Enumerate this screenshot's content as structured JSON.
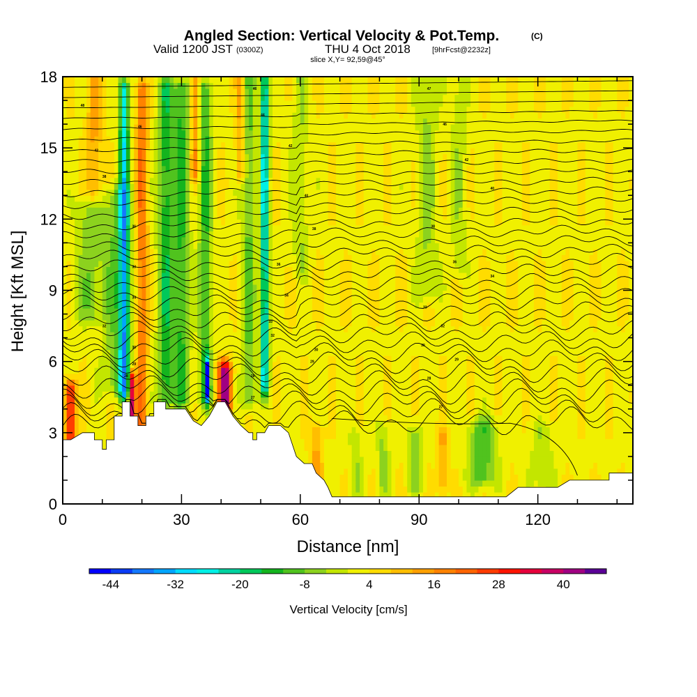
{
  "chart_data": {
    "type": "heatmap",
    "title": "Angled Section: Vertical Velocity & Pot.Temp.",
    "title_mark": "(C)",
    "subtitle_main": "Valid 1200 JST",
    "subtitle_utc": "(0300Z)",
    "subtitle_date": "THU 4 Oct 2018",
    "subtitle_fcst": "[9hrFcst@2232z]",
    "slice_label": "slice X,Y= 92,59@45°",
    "xlabel": "Distance [nm]",
    "ylabel": "Height [Kft MSL]",
    "xlim": [
      0,
      144
    ],
    "ylim": [
      0,
      18
    ],
    "x_ticks": [
      0,
      30,
      60,
      90,
      120
    ],
    "y_ticks": [
      0,
      3,
      6,
      9,
      12,
      15,
      18
    ],
    "colorbar": {
      "title": "Vertical Velocity [cm/s]",
      "min": -48,
      "max": 48,
      "tick_values": [
        -44,
        -32,
        -20,
        -8,
        4,
        16,
        28,
        40
      ],
      "tick_labels": [
        "-44",
        "-32",
        "-20",
        "-8",
        "4",
        "16",
        "28",
        "40"
      ],
      "colors": [
        "#0000ff",
        "#0a3cf5",
        "#1478ff",
        "#00a5ff",
        "#00dcff",
        "#00f0e6",
        "#00d2a0",
        "#00c85a",
        "#14b41e",
        "#50c31e",
        "#8cd21e",
        "#c3e600",
        "#f0f000",
        "#ffdc00",
        "#ffbe00",
        "#ffa000",
        "#ff8200",
        "#ff6400",
        "#ff3c00",
        "#ff1400",
        "#e6003c",
        "#c80064",
        "#a00082",
        "#5a0096"
      ]
    },
    "terrain_kft": [
      [
        0,
        2.7
      ],
      [
        2,
        2.7
      ],
      [
        5,
        3.0
      ],
      [
        8,
        3.0
      ],
      [
        8,
        2.7
      ],
      [
        10,
        2.7
      ],
      [
        10,
        2.3
      ],
      [
        11,
        2.3
      ],
      [
        11,
        2.7
      ],
      [
        13,
        2.7
      ],
      [
        13,
        3.7
      ],
      [
        15,
        3.7
      ],
      [
        15,
        4.3
      ],
      [
        17,
        4.3
      ],
      [
        17,
        3.7
      ],
      [
        19,
        3.7
      ],
      [
        19,
        3.3
      ],
      [
        21,
        3.3
      ],
      [
        21,
        3.7
      ],
      [
        23,
        3.7
      ],
      [
        23,
        4.3
      ],
      [
        26,
        4.3
      ],
      [
        26,
        4.0
      ],
      [
        31,
        4.0
      ],
      [
        33,
        3.5
      ],
      [
        35,
        3.3
      ],
      [
        37,
        3.7
      ],
      [
        39,
        4.3
      ],
      [
        41,
        4.3
      ],
      [
        43,
        3.7
      ],
      [
        45,
        3.3
      ],
      [
        47,
        3.0
      ],
      [
        48,
        3.0
      ],
      [
        48,
        2.7
      ],
      [
        49,
        2.7
      ],
      [
        49,
        3.0
      ],
      [
        51,
        3.0
      ],
      [
        52,
        3.3
      ],
      [
        55,
        3.3
      ],
      [
        57,
        3.0
      ],
      [
        59,
        2.0
      ],
      [
        61,
        1.7
      ],
      [
        63,
        1.7
      ],
      [
        64,
        1.3
      ],
      [
        66,
        1.0
      ],
      [
        67,
        0.7
      ],
      [
        68,
        0.3
      ],
      [
        90,
        0.3
      ],
      [
        112,
        0.3
      ],
      [
        115,
        0.7
      ],
      [
        119,
        0.7
      ],
      [
        125,
        0.7
      ],
      [
        128,
        1.0
      ],
      [
        132,
        1.0
      ],
      [
        138,
        1.0
      ],
      [
        138,
        1.3
      ],
      [
        144,
        1.3
      ]
    ],
    "vv_features": [
      {
        "x": 15.5,
        "z0": 4.8,
        "z1": 17.5,
        "w": 1.2,
        "v": -30
      },
      {
        "x": 14.0,
        "z0": 5.0,
        "z1": 13.0,
        "w": 3.5,
        "v": -12
      },
      {
        "x": 26.0,
        "z0": 4.5,
        "z1": 17.5,
        "w": 2.0,
        "v": -18
      },
      {
        "x": 30.0,
        "z0": 4.5,
        "z1": 17.5,
        "w": 2.0,
        "v": -16
      },
      {
        "x": 36.0,
        "z0": 4.5,
        "z1": 17.5,
        "w": 1.6,
        "v": -16
      },
      {
        "x": 51.0,
        "z0": 5.0,
        "z1": 18.0,
        "w": 1.0,
        "v": -32
      },
      {
        "x": 47.0,
        "z0": 4.5,
        "z1": 18.0,
        "w": 1.8,
        "v": -12
      },
      {
        "x": 20.0,
        "z0": 3.5,
        "z1": 17.5,
        "w": 1.4,
        "v": 18
      },
      {
        "x": 17.5,
        "z0": 3.5,
        "z1": 5.2,
        "w": 0.8,
        "v": 36
      },
      {
        "x": 41.0,
        "z0": 4.3,
        "z1": 5.6,
        "w": 1.6,
        "v": 40
      },
      {
        "x": 2.0,
        "z0": 2.7,
        "z1": 4.8,
        "w": 1.4,
        "v": 28
      },
      {
        "x": 36.5,
        "z0": 4.8,
        "z1": 5.6,
        "w": 0.6,
        "v": -42
      },
      {
        "x": 7.0,
        "z0": 8.0,
        "z1": 12.5,
        "w": 3.5,
        "v": -10
      },
      {
        "x": 92.0,
        "z0": 9.0,
        "z1": 18.0,
        "w": 2.5,
        "v": -8
      },
      {
        "x": 100.0,
        "z0": 10.0,
        "z1": 18.0,
        "w": 2.0,
        "v": -6
      },
      {
        "x": 60.0,
        "z0": 10.0,
        "z1": 18.0,
        "w": 2.0,
        "v": -7
      },
      {
        "x": 106.0,
        "z0": 1.2,
        "z1": 3.2,
        "w": 3.5,
        "v": -14
      },
      {
        "x": 89.0,
        "z0": 0.8,
        "z1": 3.0,
        "w": 1.6,
        "v": -9
      },
      {
        "x": 81.0,
        "z0": 0.8,
        "z1": 3.0,
        "w": 1.5,
        "v": -8
      },
      {
        "x": 74.0,
        "z0": 0.8,
        "z1": 2.8,
        "w": 1.5,
        "v": -7
      },
      {
        "x": 96.0,
        "z0": 0.8,
        "z1": 2.8,
        "w": 1.2,
        "v": 10
      },
      {
        "x": 64.0,
        "z0": 0.6,
        "z1": 3.0,
        "w": 1.6,
        "v": 10
      },
      {
        "x": 121.0,
        "z0": 1.0,
        "z1": 3.0,
        "w": 3.0,
        "v": -6
      },
      {
        "x": 8.0,
        "z0": 13.0,
        "z1": 18.0,
        "w": 2.0,
        "v": 10
      },
      {
        "x": 33.5,
        "z0": 14.0,
        "z1": 18.0,
        "w": 1.2,
        "v": 14
      },
      {
        "x": 45.0,
        "z0": 14.0,
        "z1": 18.0,
        "w": 1.2,
        "v": 12
      }
    ],
    "contour_labels": [
      {
        "x": 5,
        "z": 16.8,
        "text": "48"
      },
      {
        "x": 19.5,
        "z": 15.9,
        "text": "46"
      },
      {
        "x": 8.5,
        "z": 14.9,
        "text": "42"
      },
      {
        "x": 10.5,
        "z": 13.8,
        "text": "38"
      },
      {
        "x": 18,
        "z": 11.7,
        "text": "36"
      },
      {
        "x": 18,
        "z": 10.0,
        "text": "33"
      },
      {
        "x": 18,
        "z": 8.7,
        "text": "34"
      },
      {
        "x": 10.5,
        "z": 7.5,
        "text": "32"
      },
      {
        "x": 18,
        "z": 6.6,
        "text": "30"
      },
      {
        "x": 18,
        "z": 5.9,
        "text": "29"
      },
      {
        "x": 16,
        "z": 5.4,
        "text": "28"
      },
      {
        "x": 48.5,
        "z": 17.5,
        "text": "46"
      },
      {
        "x": 50.5,
        "z": 16.4,
        "text": "44"
      },
      {
        "x": 57.5,
        "z": 15.1,
        "text": "42"
      },
      {
        "x": 61.5,
        "z": 13.0,
        "text": "40"
      },
      {
        "x": 63.5,
        "z": 11.6,
        "text": "38"
      },
      {
        "x": 54.5,
        "z": 10.1,
        "text": "36"
      },
      {
        "x": 56.5,
        "z": 8.8,
        "text": "34"
      },
      {
        "x": 52.5,
        "z": 7.7,
        "text": "33"
      },
      {
        "x": 53,
        "z": 7.1,
        "text": "32"
      },
      {
        "x": 64,
        "z": 6.5,
        "text": "30"
      },
      {
        "x": 63,
        "z": 6.0,
        "text": "29"
      },
      {
        "x": 48,
        "z": 5.4,
        "text": "28"
      },
      {
        "x": 48,
        "z": 4.5,
        "text": "27"
      },
      {
        "x": 92.5,
        "z": 17.5,
        "text": "47"
      },
      {
        "x": 96.5,
        "z": 16.0,
        "text": "46"
      },
      {
        "x": 102,
        "z": 14.5,
        "text": "42"
      },
      {
        "x": 108.5,
        "z": 13.3,
        "text": "40"
      },
      {
        "x": 93.5,
        "z": 11.7,
        "text": "38"
      },
      {
        "x": 99,
        "z": 10.2,
        "text": "36"
      },
      {
        "x": 108.5,
        "z": 9.6,
        "text": "34"
      },
      {
        "x": 91.5,
        "z": 8.3,
        "text": "33"
      },
      {
        "x": 96,
        "z": 7.5,
        "text": "32"
      },
      {
        "x": 91,
        "z": 6.7,
        "text": "30"
      },
      {
        "x": 99.5,
        "z": 6.1,
        "text": "29"
      },
      {
        "x": 92.5,
        "z": 5.3,
        "text": "28"
      },
      {
        "x": 95.5,
        "z": 4.1,
        "text": "27"
      }
    ]
  }
}
